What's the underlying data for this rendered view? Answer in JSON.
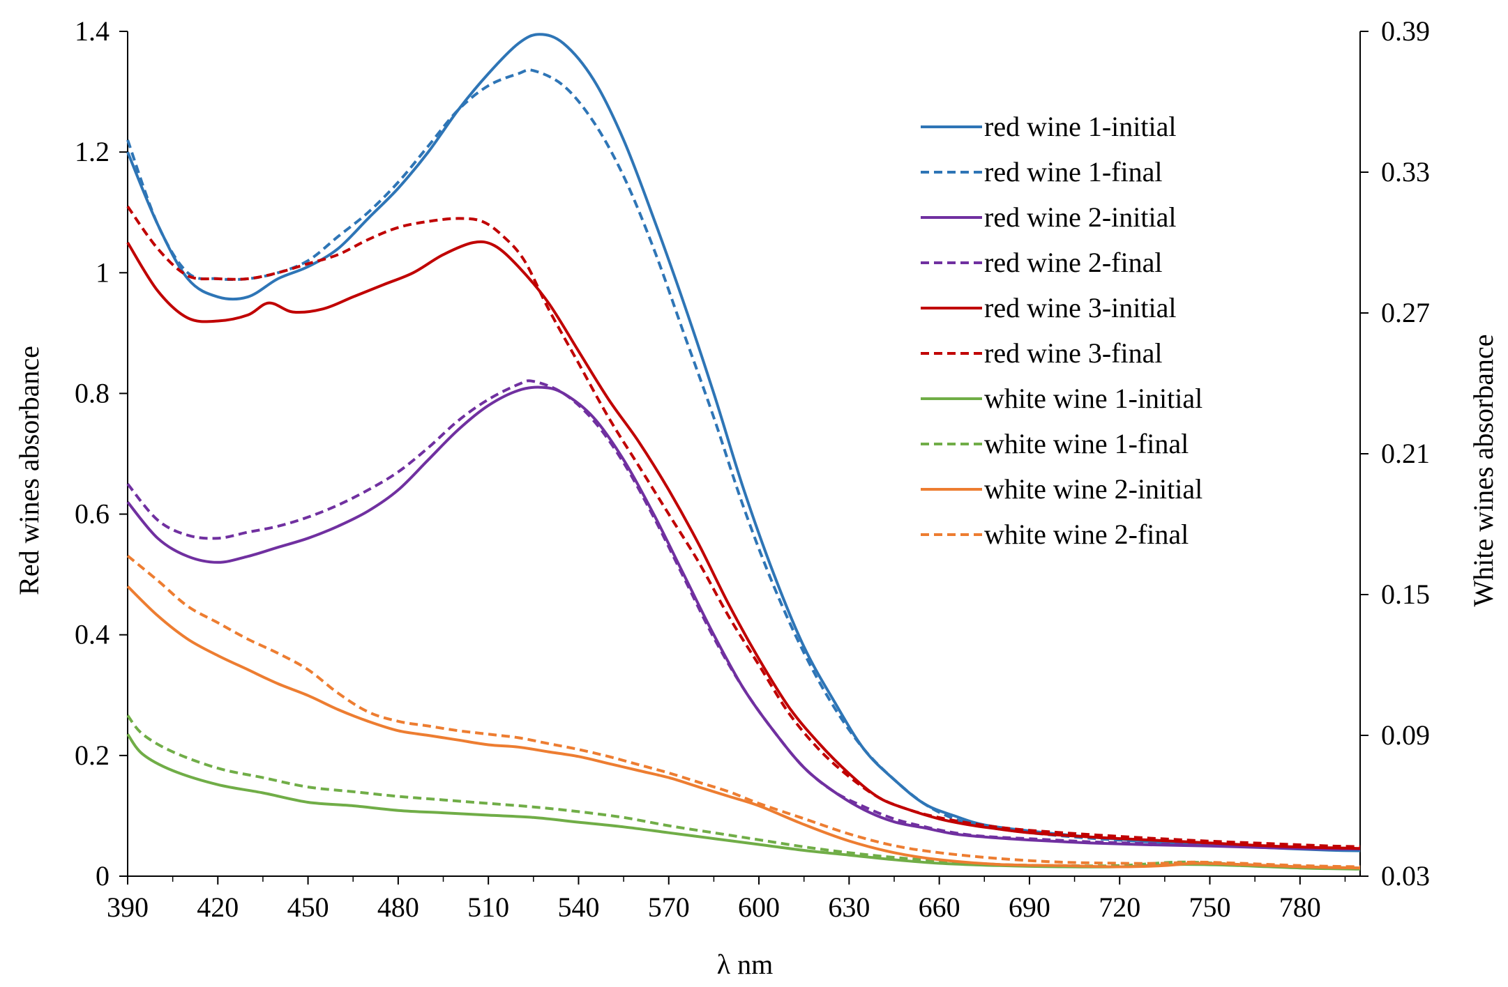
{
  "chart_data": {
    "type": "line",
    "title": "",
    "xlabel": "λ nm",
    "ylabel_left": "Red wines absorbance",
    "ylabel_right": "White wines absorbance",
    "xlim": [
      390,
      800
    ],
    "ylim_left": [
      0,
      1.4
    ],
    "ylim_right": [
      0.03,
      0.39
    ],
    "xticks": [
      390,
      420,
      450,
      480,
      510,
      540,
      570,
      600,
      630,
      660,
      690,
      720,
      750,
      780
    ],
    "xtick_labels": [
      "390",
      "420",
      "450",
      "480",
      "510",
      "540",
      "570",
      "600",
      "630",
      "660",
      "690",
      "720",
      "750",
      "780"
    ],
    "yticks_left": [
      0,
      0.2,
      0.4,
      0.6,
      0.8,
      1,
      1.2,
      1.4
    ],
    "ytick_labels_left": [
      "0",
      "0.2",
      "0.4",
      "0.6",
      "0.8",
      "1",
      "1.2",
      "1.4"
    ],
    "yticks_right": [
      0.03,
      0.09,
      0.15,
      0.21,
      0.27,
      0.33,
      0.39
    ],
    "ytick_labels_right": [
      "0.03",
      "0.09",
      "0.15",
      "0.21",
      "0.27",
      "0.33",
      "0.39"
    ],
    "legend_position": "top-right",
    "series": [
      {
        "name": "red wine 1-initial",
        "axis": "left",
        "color": "#2E75B6",
        "dash": "solid",
        "x": [
          390,
          400,
          410,
          420,
          430,
          440,
          450,
          460,
          470,
          480,
          490,
          500,
          510,
          520,
          527,
          535,
          545,
          555,
          565,
          575,
          585,
          595,
          605,
          615,
          625,
          635,
          645,
          655,
          665,
          675,
          690,
          710,
          730,
          750,
          770,
          790,
          800
        ],
        "y": [
          1.2,
          1.08,
          0.99,
          0.96,
          0.96,
          0.99,
          1.01,
          1.04,
          1.09,
          1.14,
          1.2,
          1.27,
          1.33,
          1.38,
          1.395,
          1.38,
          1.32,
          1.22,
          1.09,
          0.95,
          0.8,
          0.64,
          0.5,
          0.38,
          0.29,
          0.21,
          0.16,
          0.12,
          0.1,
          0.085,
          0.075,
          0.065,
          0.058,
          0.052,
          0.047,
          0.043,
          0.042
        ]
      },
      {
        "name": "red wine 1-final",
        "axis": "left",
        "color": "#2E75B6",
        "dash": "dashed",
        "x": [
          390,
          400,
          410,
          420,
          430,
          440,
          450,
          460,
          470,
          480,
          490,
          500,
          510,
          520,
          525,
          535,
          545,
          555,
          565,
          575,
          585,
          595,
          605,
          615,
          625,
          635,
          645,
          655,
          665,
          675,
          690,
          710,
          730,
          750,
          770,
          790,
          800
        ],
        "y": [
          1.22,
          1.08,
          1.0,
          0.99,
          0.99,
          1.0,
          1.02,
          1.06,
          1.1,
          1.15,
          1.21,
          1.27,
          1.31,
          1.33,
          1.335,
          1.31,
          1.25,
          1.16,
          1.04,
          0.9,
          0.76,
          0.61,
          0.48,
          0.37,
          0.28,
          0.21,
          0.16,
          0.12,
          0.095,
          0.082,
          0.072,
          0.063,
          0.057,
          0.052,
          0.048,
          0.045,
          0.044
        ]
      },
      {
        "name": "red wine 2-initial",
        "axis": "left",
        "color": "#7030A0",
        "dash": "solid",
        "x": [
          390,
          400,
          410,
          420,
          430,
          440,
          450,
          460,
          470,
          480,
          490,
          500,
          510,
          520,
          528,
          535,
          545,
          555,
          565,
          575,
          585,
          595,
          605,
          615,
          625,
          635,
          645,
          655,
          665,
          675,
          690,
          710,
          730,
          750,
          770,
          790,
          800
        ],
        "y": [
          0.62,
          0.56,
          0.53,
          0.52,
          0.53,
          0.545,
          0.56,
          0.58,
          0.605,
          0.64,
          0.69,
          0.74,
          0.78,
          0.805,
          0.81,
          0.8,
          0.76,
          0.69,
          0.6,
          0.5,
          0.4,
          0.31,
          0.24,
          0.18,
          0.14,
          0.11,
          0.09,
          0.08,
          0.07,
          0.065,
          0.06,
          0.055,
          0.052,
          0.05,
          0.047,
          0.045,
          0.045
        ]
      },
      {
        "name": "red wine 2-final",
        "axis": "left",
        "color": "#7030A0",
        "dash": "dashed",
        "x": [
          390,
          400,
          410,
          420,
          430,
          440,
          450,
          460,
          470,
          480,
          490,
          500,
          510,
          520,
          525,
          535,
          545,
          555,
          565,
          575,
          585,
          595,
          605,
          615,
          625,
          635,
          645,
          655,
          665,
          675,
          690,
          710,
          730,
          750,
          770,
          790,
          800
        ],
        "y": [
          0.65,
          0.59,
          0.565,
          0.56,
          0.57,
          0.58,
          0.595,
          0.615,
          0.64,
          0.67,
          0.71,
          0.755,
          0.79,
          0.815,
          0.82,
          0.8,
          0.755,
          0.685,
          0.595,
          0.495,
          0.395,
          0.31,
          0.24,
          0.18,
          0.14,
          0.115,
          0.095,
          0.082,
          0.072,
          0.066,
          0.062,
          0.057,
          0.054,
          0.051,
          0.048,
          0.046,
          0.046
        ]
      },
      {
        "name": "red wine 3-initial",
        "axis": "left",
        "color": "#C00000",
        "dash": "solid",
        "x": [
          390,
          400,
          410,
          420,
          430,
          437,
          445,
          455,
          465,
          475,
          485,
          495,
          505,
          512,
          520,
          530,
          540,
          550,
          560,
          570,
          580,
          590,
          600,
          610,
          620,
          630,
          640,
          650,
          660,
          670,
          680,
          690,
          710,
          730,
          750,
          770,
          790,
          800
        ],
        "y": [
          1.05,
          0.97,
          0.925,
          0.92,
          0.93,
          0.95,
          0.935,
          0.94,
          0.96,
          0.98,
          1.0,
          1.03,
          1.05,
          1.045,
          1.01,
          0.95,
          0.87,
          0.79,
          0.72,
          0.64,
          0.55,
          0.45,
          0.36,
          0.28,
          0.22,
          0.17,
          0.13,
          0.11,
          0.095,
          0.085,
          0.078,
          0.072,
          0.065,
          0.06,
          0.055,
          0.05,
          0.047,
          0.046
        ]
      },
      {
        "name": "red wine 3-final",
        "axis": "left",
        "color": "#C00000",
        "dash": "dashed",
        "x": [
          390,
          400,
          410,
          420,
          430,
          440,
          450,
          460,
          470,
          480,
          490,
          500,
          508,
          515,
          522,
          530,
          540,
          550,
          560,
          570,
          580,
          590,
          600,
          610,
          620,
          630,
          640,
          650,
          660,
          670,
          680,
          690,
          710,
          730,
          750,
          770,
          790,
          800
        ],
        "y": [
          1.11,
          1.04,
          0.995,
          0.99,
          0.99,
          1.0,
          1.015,
          1.03,
          1.055,
          1.075,
          1.085,
          1.09,
          1.085,
          1.06,
          1.02,
          0.94,
          0.85,
          0.76,
          0.68,
          0.6,
          0.52,
          0.43,
          0.35,
          0.27,
          0.21,
          0.165,
          0.13,
          0.11,
          0.097,
          0.088,
          0.081,
          0.076,
          0.069,
          0.063,
          0.058,
          0.054,
          0.05,
          0.049
        ]
      },
      {
        "name": "white wine 1-initial",
        "axis": "right",
        "color": "#70AD47",
        "dash": "solid",
        "x": [
          390,
          395,
          405,
          420,
          435,
          450,
          465,
          480,
          495,
          510,
          525,
          540,
          555,
          570,
          585,
          600,
          615,
          630,
          645,
          660,
          680,
          700,
          720,
          740,
          760,
          780,
          800
        ],
        "y": [
          0.0905,
          0.082,
          0.075,
          0.069,
          0.0655,
          0.0615,
          0.06,
          0.058,
          0.057,
          0.056,
          0.055,
          0.053,
          0.051,
          0.0485,
          0.046,
          0.0435,
          0.041,
          0.039,
          0.037,
          0.0355,
          0.0345,
          0.034,
          0.034,
          0.035,
          0.0345,
          0.0335,
          0.033
        ]
      },
      {
        "name": "white wine 1-final",
        "axis": "right",
        "color": "#70AD47",
        "dash": "dashed",
        "x": [
          390,
          395,
          405,
          420,
          435,
          450,
          465,
          480,
          495,
          510,
          525,
          540,
          555,
          570,
          585,
          600,
          615,
          630,
          645,
          660,
          680,
          700,
          720,
          740,
          760,
          780,
          800
        ],
        "y": [
          0.0985,
          0.0905,
          0.083,
          0.076,
          0.072,
          0.068,
          0.066,
          0.064,
          0.0625,
          0.061,
          0.0595,
          0.0575,
          0.055,
          0.0515,
          0.0485,
          0.0455,
          0.0425,
          0.04,
          0.038,
          0.0365,
          0.035,
          0.0345,
          0.0345,
          0.036,
          0.035,
          0.034,
          0.0335
        ]
      },
      {
        "name": "white wine 2-initial",
        "axis": "right",
        "color": "#ED7D31",
        "dash": "solid",
        "x": [
          390,
          400,
          410,
          420,
          430,
          440,
          450,
          460,
          470,
          480,
          490,
          500,
          510,
          520,
          530,
          540,
          550,
          560,
          570,
          580,
          590,
          600,
          615,
          630,
          645,
          660,
          680,
          700,
          720,
          735,
          745,
          760,
          780,
          800
        ],
        "y": [
          0.1535,
          0.141,
          0.131,
          0.124,
          0.118,
          0.112,
          0.107,
          0.101,
          0.096,
          0.092,
          0.09,
          0.088,
          0.086,
          0.085,
          0.083,
          0.081,
          0.078,
          0.075,
          0.072,
          0.068,
          0.064,
          0.06,
          0.052,
          0.045,
          0.04,
          0.037,
          0.035,
          0.0345,
          0.034,
          0.0345,
          0.0355,
          0.035,
          0.034,
          0.0335
        ]
      },
      {
        "name": "white wine 2-final",
        "axis": "right",
        "color": "#ED7D31",
        "dash": "dashed",
        "x": [
          390,
          400,
          410,
          420,
          430,
          440,
          450,
          460,
          470,
          480,
          490,
          500,
          510,
          520,
          530,
          540,
          550,
          560,
          570,
          580,
          590,
          600,
          615,
          630,
          645,
          660,
          680,
          700,
          720,
          735,
          745,
          760,
          780,
          800
        ],
        "y": [
          0.1665,
          0.156,
          0.145,
          0.138,
          0.131,
          0.125,
          0.118,
          0.108,
          0.1,
          0.096,
          0.094,
          0.092,
          0.0905,
          0.089,
          0.0865,
          0.084,
          0.081,
          0.0775,
          0.074,
          0.07,
          0.066,
          0.061,
          0.0545,
          0.048,
          0.043,
          0.04,
          0.0375,
          0.036,
          0.0355,
          0.0355,
          0.036,
          0.0355,
          0.0345,
          0.034
        ]
      }
    ]
  }
}
